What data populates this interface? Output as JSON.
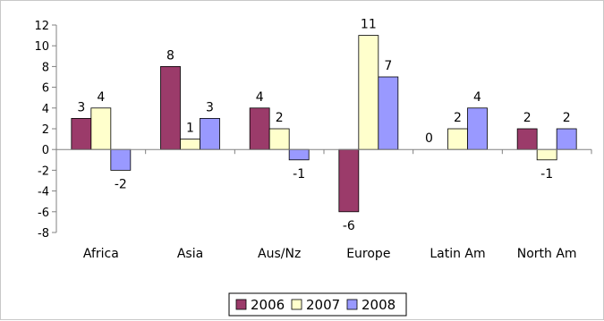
{
  "chart_data": {
    "type": "bar",
    "categories": [
      "Africa",
      "Asia",
      "Aus/Nz",
      "Europe",
      "Latin Am",
      "North Am"
    ],
    "series": [
      {
        "name": "2006",
        "color": "#9b3b6a",
        "values": [
          3,
          8,
          4,
          -6,
          0,
          2
        ]
      },
      {
        "name": "2007",
        "color": "#ffffcc",
        "values": [
          4,
          1,
          2,
          11,
          2,
          -1
        ]
      },
      {
        "name": "2008",
        "color": "#9999ff",
        "values": [
          -2,
          3,
          -1,
          7,
          4,
          2
        ]
      }
    ],
    "ylim": [
      -8,
      12
    ],
    "yticks": [
      -8,
      -6,
      -4,
      -2,
      0,
      2,
      4,
      6,
      8,
      10,
      12
    ],
    "data_labels": [
      [
        "3",
        "8",
        "4",
        "-6",
        "",
        "2"
      ],
      [
        "4",
        "1",
        "2",
        "11",
        "2",
        "-1"
      ],
      [
        "-2",
        "3",
        "-1",
        "7",
        "4",
        "2"
      ]
    ],
    "extra_labels": [
      {
        "category_index": 4,
        "text": "0"
      }
    ],
    "legend_position": "bottom",
    "grid": false,
    "title": "",
    "xlabel": "",
    "ylabel": ""
  }
}
